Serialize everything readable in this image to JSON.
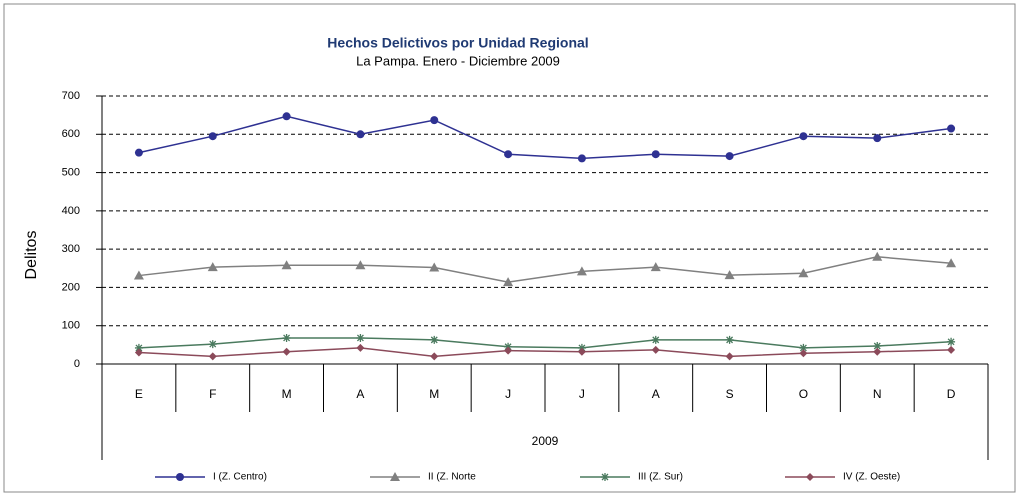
{
  "chart_data": {
    "type": "line",
    "title": "Hechos Delictivos por Unidad Regional",
    "subtitle": "La Pampa. Enero - Diciembre  2009",
    "ylabel": "Delitos",
    "xlabel": "2009",
    "categories": [
      "E",
      "F",
      "M",
      "A",
      "M",
      "J",
      "J",
      "A",
      "S",
      "O",
      "N",
      "D"
    ],
    "series": [
      {
        "name": "I (Z. Centro)",
        "color": "#2e3192",
        "marker": "circle",
        "values": [
          552,
          595,
          647,
          600,
          637,
          548,
          537,
          548,
          543,
          595,
          590,
          615
        ]
      },
      {
        "name": "II (Z. Norte",
        "color": "#808080",
        "marker": "triangle",
        "values": [
          231,
          253,
          258,
          258,
          252,
          214,
          242,
          253,
          232,
          237,
          280,
          263
        ]
      },
      {
        "name": "III (Z. Sur)",
        "color": "#4a7a5e",
        "marker": "asterisk",
        "values": [
          42,
          52,
          68,
          68,
          63,
          45,
          42,
          63,
          63,
          42,
          47,
          58
        ]
      },
      {
        "name": "IV (Z. Oeste)",
        "color": "#8b4a5a",
        "marker": "diamond",
        "values": [
          30,
          20,
          32,
          42,
          20,
          35,
          32,
          37,
          20,
          28,
          32,
          37
        ]
      }
    ],
    "ylim": [
      0,
      700
    ],
    "yticks": [
      0,
      100,
      200,
      300,
      400,
      500,
      600,
      700
    ],
    "grid": true,
    "legend": "bottom"
  }
}
